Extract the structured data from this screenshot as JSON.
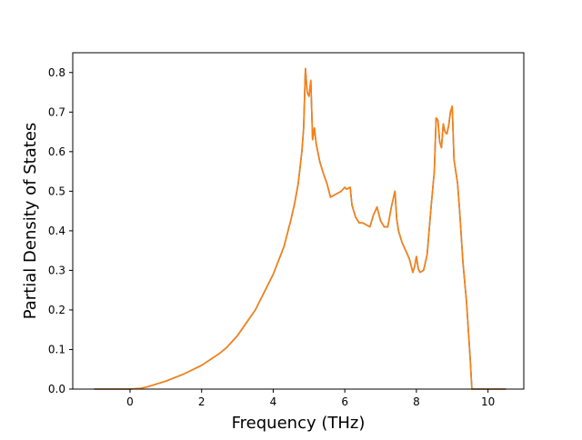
{
  "chart_data": {
    "type": "line",
    "title": "",
    "xlabel": "Frequency (THz)",
    "ylabel": "Partial Density of States",
    "xlim": [
      -1.6,
      11.0
    ],
    "ylim": [
      0.0,
      0.85
    ],
    "xticks": [
      0,
      2,
      4,
      6,
      8,
      10
    ],
    "yticks": [
      0.0,
      0.1,
      0.2,
      0.3,
      0.4,
      0.5,
      0.6,
      0.7,
      0.8
    ],
    "xtick_labels": [
      "0",
      "2",
      "4",
      "6",
      "8",
      "10"
    ],
    "ytick_labels": [
      "0.0",
      "0.1",
      "0.2",
      "0.3",
      "0.4",
      "0.5",
      "0.6",
      "0.7",
      "0.8"
    ],
    "grid": false,
    "legend": "none",
    "series": [
      {
        "color": "#1f77b4",
        "x": [
          -1.0,
          0.0,
          0.3,
          0.5,
          1.0,
          1.5,
          2.0,
          2.5,
          2.7,
          2.9,
          3.0,
          3.5,
          4.0,
          4.3,
          4.5,
          4.6,
          4.7,
          4.8,
          4.85,
          4.9,
          4.95,
          5.0,
          5.05,
          5.1,
          5.15,
          5.2,
          5.3,
          5.4,
          5.5,
          5.6,
          5.7,
          5.8,
          5.9,
          6.0,
          6.05,
          6.15,
          6.2,
          6.3,
          6.4,
          6.5,
          6.6,
          6.7,
          6.8,
          6.9,
          7.0,
          7.1,
          7.2,
          7.3,
          7.4,
          7.45,
          7.5,
          7.6,
          7.7,
          7.8,
          7.9,
          7.95,
          8.0,
          8.05,
          8.1,
          8.2,
          8.3,
          8.4,
          8.5,
          8.55,
          8.6,
          8.65,
          8.7,
          8.75,
          8.8,
          8.85,
          8.9,
          8.95,
          9.0,
          9.05,
          9.1,
          9.15,
          9.2,
          9.3,
          9.4,
          9.5,
          9.55,
          9.6,
          10.5
        ],
        "y": [
          0.0,
          0.0,
          0.002,
          0.006,
          0.02,
          0.038,
          0.06,
          0.09,
          0.105,
          0.125,
          0.135,
          0.2,
          0.29,
          0.36,
          0.43,
          0.47,
          0.52,
          0.6,
          0.66,
          0.81,
          0.75,
          0.74,
          0.78,
          0.63,
          0.66,
          0.62,
          0.575,
          0.545,
          0.52,
          0.485,
          0.49,
          0.495,
          0.5,
          0.51,
          0.505,
          0.51,
          0.465,
          0.435,
          0.42,
          0.42,
          0.415,
          0.41,
          0.44,
          0.46,
          0.425,
          0.41,
          0.41,
          0.46,
          0.5,
          0.43,
          0.4,
          0.37,
          0.35,
          0.33,
          0.295,
          0.31,
          0.335,
          0.305,
          0.295,
          0.3,
          0.34,
          0.45,
          0.55,
          0.685,
          0.68,
          0.625,
          0.61,
          0.67,
          0.65,
          0.645,
          0.665,
          0.7,
          0.715,
          0.58,
          0.55,
          0.52,
          0.46,
          0.32,
          0.22,
          0.08,
          0.0,
          0.0,
          0.0
        ]
      },
      {
        "color": "#ff7f0e",
        "x": [
          -1.0,
          0.0,
          0.3,
          0.5,
          1.0,
          1.5,
          2.0,
          2.5,
          2.7,
          2.9,
          3.0,
          3.5,
          4.0,
          4.3,
          4.5,
          4.6,
          4.7,
          4.8,
          4.85,
          4.9,
          4.95,
          5.0,
          5.05,
          5.1,
          5.15,
          5.2,
          5.3,
          5.4,
          5.5,
          5.6,
          5.7,
          5.8,
          5.9,
          6.0,
          6.05,
          6.15,
          6.2,
          6.3,
          6.4,
          6.5,
          6.6,
          6.7,
          6.8,
          6.9,
          7.0,
          7.1,
          7.2,
          7.3,
          7.4,
          7.45,
          7.5,
          7.6,
          7.7,
          7.8,
          7.9,
          7.95,
          8.0,
          8.05,
          8.1,
          8.2,
          8.3,
          8.4,
          8.5,
          8.55,
          8.6,
          8.65,
          8.7,
          8.75,
          8.8,
          8.85,
          8.9,
          8.95,
          9.0,
          9.05,
          9.1,
          9.15,
          9.2,
          9.3,
          9.4,
          9.5,
          9.55,
          9.6,
          10.5
        ],
        "y": [
          0.0,
          0.0,
          0.002,
          0.006,
          0.02,
          0.038,
          0.06,
          0.09,
          0.105,
          0.125,
          0.135,
          0.2,
          0.29,
          0.36,
          0.43,
          0.47,
          0.52,
          0.6,
          0.66,
          0.81,
          0.75,
          0.74,
          0.78,
          0.63,
          0.66,
          0.62,
          0.575,
          0.545,
          0.52,
          0.485,
          0.49,
          0.495,
          0.5,
          0.51,
          0.505,
          0.51,
          0.465,
          0.435,
          0.42,
          0.42,
          0.415,
          0.41,
          0.44,
          0.46,
          0.425,
          0.41,
          0.41,
          0.46,
          0.5,
          0.43,
          0.4,
          0.37,
          0.35,
          0.33,
          0.295,
          0.31,
          0.335,
          0.305,
          0.295,
          0.3,
          0.34,
          0.45,
          0.55,
          0.685,
          0.68,
          0.625,
          0.61,
          0.67,
          0.65,
          0.645,
          0.665,
          0.7,
          0.715,
          0.58,
          0.55,
          0.52,
          0.46,
          0.32,
          0.22,
          0.08,
          0.0,
          0.0,
          0.0
        ]
      }
    ]
  }
}
